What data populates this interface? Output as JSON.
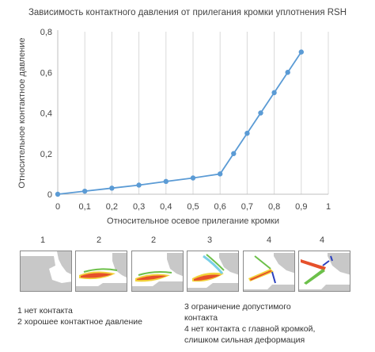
{
  "chart_data": {
    "type": "line",
    "title": "Зависимость контактного давления от прилегания кромки уплотнения RSH",
    "xlabel": "Относительное осевое прилегание кромки",
    "ylabel": "Относительное контактное давление",
    "xlim": [
      0,
      1.0
    ],
    "ylim": [
      0,
      0.8
    ],
    "x_ticks": [
      "0",
      "0,1",
      "0,2",
      "0,3",
      "0,4",
      "0,5",
      "0,6",
      "0,7",
      "0,8",
      "0,9",
      "1"
    ],
    "y_ticks": [
      "0",
      "0,2",
      "0,4",
      "0,6",
      "0,8"
    ],
    "grid": "vertical",
    "series": [
      {
        "x": [
          0,
          0.1,
          0.2,
          0.3,
          0.4,
          0.5,
          0.6,
          0.65,
          0.7,
          0.75,
          0.8,
          0.85,
          0.9
        ],
        "y": [
          0,
          0.015,
          0.03,
          0.045,
          0.063,
          0.08,
          0.1,
          0.2,
          0.3,
          0.4,
          0.5,
          0.6,
          0.7
        ],
        "color": "#5b9bd5"
      }
    ]
  },
  "panels": {
    "labels": [
      "1",
      "2",
      "2",
      "3",
      "4",
      "4"
    ]
  },
  "legend": {
    "left": "1 нет контакта\n2 хорошее контактное давление",
    "right": "3 ограничение допустимого\nконтакта\n4 нет контакта с главной кромкой,\nслишком сильная деформация"
  },
  "colors": {
    "line": "#5b9bd5",
    "axis": "#bfbfbf",
    "grid": "#d9d9d9",
    "panel_gray": "#c8c8c8"
  }
}
